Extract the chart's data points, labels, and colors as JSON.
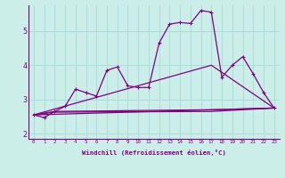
{
  "xlabel": "Windchill (Refroidissement éolien,°C)",
  "x_ticks": [
    0,
    1,
    2,
    3,
    4,
    5,
    6,
    7,
    8,
    9,
    10,
    11,
    12,
    13,
    14,
    15,
    16,
    17,
    18,
    19,
    20,
    21,
    22,
    23
  ],
  "ylim": [
    1.85,
    5.75
  ],
  "xlim": [
    -0.5,
    23.5
  ],
  "yticks": [
    2,
    3,
    4,
    5
  ],
  "bg_color": "#cceee8",
  "grid_color": "#aadddd",
  "line_color": "#800080",
  "series_main": {
    "x": [
      0,
      1,
      2,
      3,
      4,
      5,
      6,
      7,
      8,
      9,
      10,
      11,
      12,
      13,
      14,
      15,
      16,
      17,
      18,
      19,
      20,
      21,
      22,
      23
    ],
    "y": [
      2.55,
      2.47,
      2.65,
      2.8,
      3.3,
      3.2,
      3.1,
      3.85,
      3.95,
      3.4,
      3.35,
      3.35,
      4.65,
      5.2,
      5.25,
      5.22,
      5.6,
      5.55,
      3.65,
      4.0,
      4.25,
      3.75,
      3.2,
      2.75
    ]
  },
  "series_diag1": {
    "x": [
      0,
      23
    ],
    "y": [
      2.55,
      2.75
    ]
  },
  "series_diag2": {
    "x": [
      0,
      17,
      23
    ],
    "y": [
      2.55,
      4.0,
      2.75
    ]
  },
  "series_flat1": {
    "x": [
      0,
      2,
      17,
      23
    ],
    "y": [
      2.55,
      2.65,
      2.7,
      2.75
    ]
  },
  "series_flat2": {
    "x": [
      0,
      2,
      17,
      23
    ],
    "y": [
      2.55,
      2.63,
      2.65,
      2.75
    ]
  }
}
